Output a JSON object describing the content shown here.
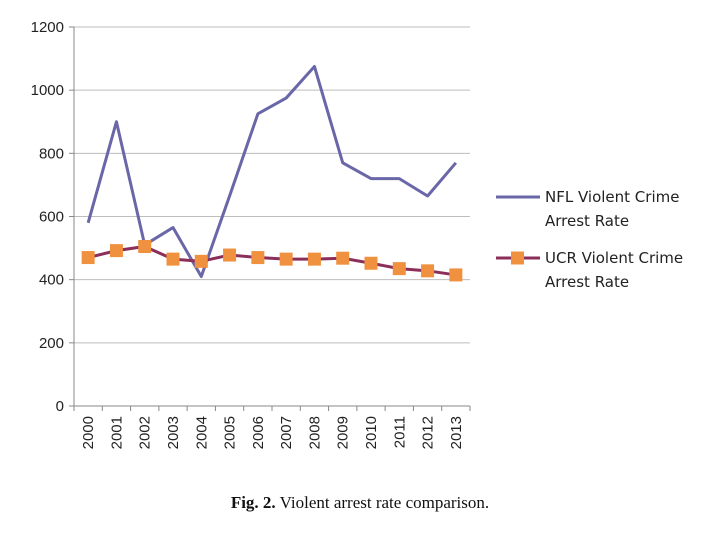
{
  "caption": {
    "label": "Fig. 2.",
    "text": " Violent arrest rate comparison."
  },
  "chart_data": {
    "type": "line",
    "categories": [
      "2000",
      "2001",
      "2002",
      "2003",
      "2004",
      "2005",
      "2006",
      "2007",
      "2008",
      "2009",
      "2010",
      "2011",
      "2012",
      "2013"
    ],
    "ylim": [
      0,
      1200
    ],
    "yticks": [
      0,
      200,
      400,
      600,
      800,
      1000,
      1200
    ],
    "grid": true,
    "legend_position": "right",
    "series": [
      {
        "name_lines": [
          "NFL Violent Crime",
          "Arrest Rate"
        ],
        "color": "#6a67a8",
        "marker": "none",
        "values": [
          580,
          900,
          510,
          565,
          410,
          665,
          925,
          975,
          1075,
          770,
          720,
          720,
          665,
          770
        ]
      },
      {
        "name_lines": [
          "UCR Violent Crime",
          "Arrest Rate"
        ],
        "color": "#8b2e5a",
        "marker": "square",
        "marker_color": "#f0913f",
        "values": [
          470,
          492,
          505,
          465,
          458,
          478,
          470,
          465,
          465,
          468,
          452,
          435,
          428,
          415
        ]
      }
    ]
  }
}
